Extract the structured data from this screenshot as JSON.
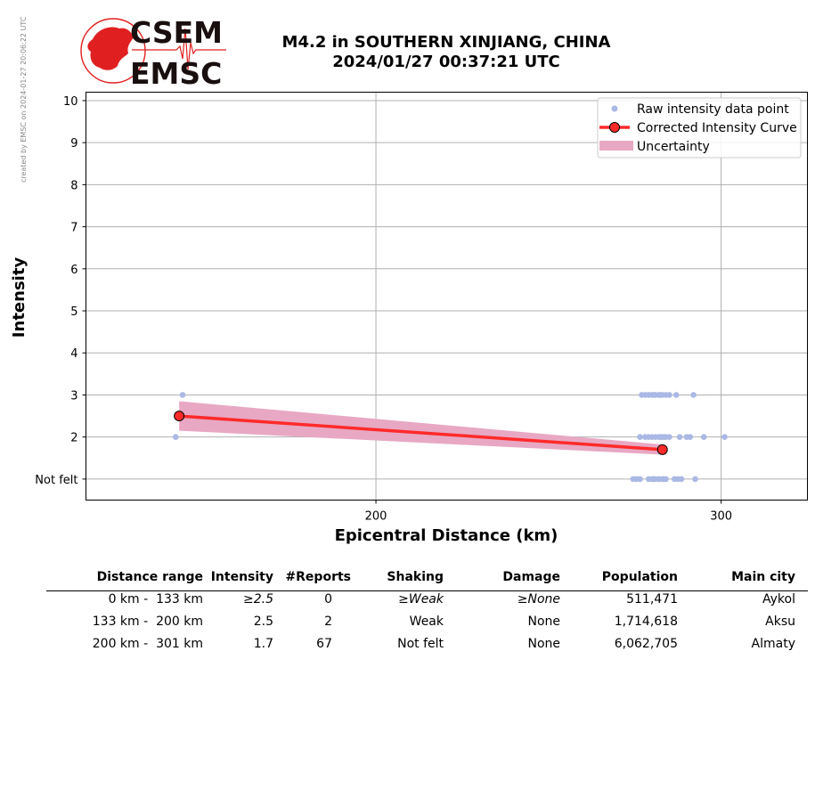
{
  "credit": "created by EMSC on 2024-01-27 20:06:22 UTC",
  "logo": {
    "top_text": "CSEM",
    "bottom_text": "EMSC",
    "accent": "#e02020"
  },
  "title": {
    "line1": "M4.2 in SOUTHERN XINJIANG, CHINA",
    "line2": "2024/01/27 00:37:21 UTC"
  },
  "chart_data": {
    "type": "scatter",
    "xlabel": "Epicentral Distance (km)",
    "ylabel": "Intensity",
    "xlim": [
      116,
      325
    ],
    "ylim": [
      0.5,
      10.2
    ],
    "xticks": [
      200,
      300
    ],
    "yticks": [
      {
        "v": 1,
        "label": "Not felt"
      },
      {
        "v": 2,
        "label": "2"
      },
      {
        "v": 3,
        "label": "3"
      },
      {
        "v": 4,
        "label": "4"
      },
      {
        "v": 5,
        "label": "5"
      },
      {
        "v": 6,
        "label": "6"
      },
      {
        "v": 7,
        "label": "7"
      },
      {
        "v": 8,
        "label": "8"
      },
      {
        "v": 9,
        "label": "9"
      },
      {
        "v": 10,
        "label": "10"
      }
    ],
    "grid": true,
    "legend_position": "top-right",
    "series": [
      {
        "name": "Raw intensity data point",
        "color": "#aab8e4",
        "points": [
          [
            144,
            3
          ],
          [
            142,
            2
          ],
          [
            277,
            3
          ],
          [
            278,
            3
          ],
          [
            279,
            3
          ],
          [
            280,
            3
          ],
          [
            280.5,
            3
          ],
          [
            281,
            3
          ],
          [
            282,
            3
          ],
          [
            282.5,
            3
          ],
          [
            283,
            3
          ],
          [
            284,
            3
          ],
          [
            285,
            3
          ],
          [
            287,
            3
          ],
          [
            292,
            3
          ],
          [
            276.5,
            2
          ],
          [
            278,
            2
          ],
          [
            279,
            2
          ],
          [
            280,
            2
          ],
          [
            281,
            2
          ],
          [
            282,
            2
          ],
          [
            282.5,
            2
          ],
          [
            283,
            2
          ],
          [
            283.5,
            2
          ],
          [
            284,
            2
          ],
          [
            285,
            2
          ],
          [
            288,
            2
          ],
          [
            290,
            2
          ],
          [
            291,
            2
          ],
          [
            295,
            2
          ],
          [
            301,
            2
          ],
          [
            274.5,
            1
          ],
          [
            275.5,
            1
          ],
          [
            276.5,
            1
          ],
          [
            279,
            1
          ],
          [
            280,
            1
          ],
          [
            280.5,
            1
          ],
          [
            281,
            1
          ],
          [
            282,
            1
          ],
          [
            283,
            1
          ],
          [
            283.5,
            1
          ],
          [
            284,
            1
          ],
          [
            286.5,
            1
          ],
          [
            287.5,
            1
          ],
          [
            288.5,
            1
          ],
          [
            292.5,
            1
          ]
        ]
      },
      {
        "name": "Corrected Intensity Curve",
        "color": "#ff2a2a",
        "points": [
          [
            143,
            2.5
          ],
          [
            283,
            1.7
          ]
        ]
      },
      {
        "name": "Uncertainty",
        "color": "#e8a8c4",
        "band_upper": [
          [
            143,
            2.85
          ],
          [
            283,
            1.82
          ]
        ],
        "band_lower": [
          [
            143,
            2.15
          ],
          [
            283,
            1.58
          ]
        ]
      }
    ]
  },
  "table": {
    "headers": [
      "Distance range",
      "Intensity",
      "#Reports",
      "Shaking",
      "Damage",
      "Population",
      "Main city"
    ],
    "rows": [
      {
        "range": "0 km -  133 km",
        "intensity": "≥2.5",
        "reports": "0",
        "shaking": "≥Weak",
        "damage": "≥None",
        "population": "511,471",
        "city": "Aykol"
      },
      {
        "range": "133 km -  200 km",
        "intensity": "2.5",
        "reports": "2",
        "shaking": "Weak",
        "damage": "None",
        "population": "1,714,618",
        "city": "Aksu"
      },
      {
        "range": "200 km -  301 km",
        "intensity": "1.7",
        "reports": "67",
        "shaking": "Not felt",
        "damage": "None",
        "population": "6,062,705",
        "city": "Almaty"
      }
    ]
  }
}
